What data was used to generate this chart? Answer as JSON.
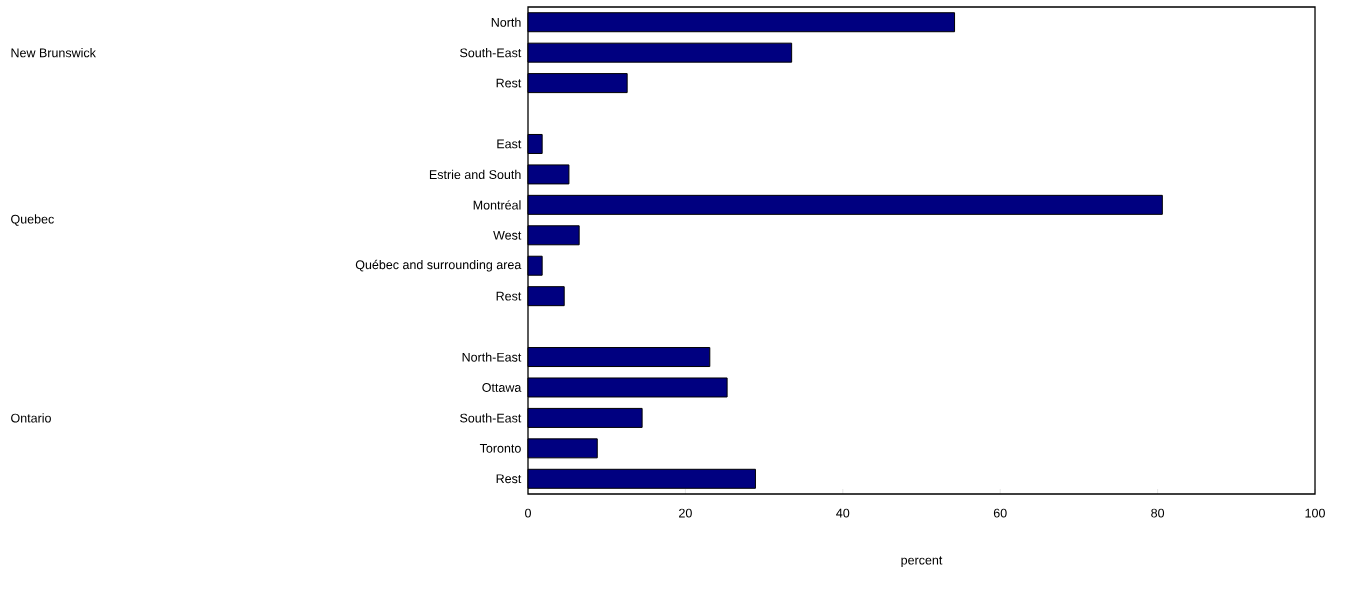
{
  "chart_data": {
    "type": "bar",
    "orientation": "horizontal",
    "xlabel": "percent",
    "categories": [
      "North",
      "South-East",
      "Rest",
      null,
      "East",
      "Estrie and South",
      "Montréal",
      "West",
      "Québec and surrounding area",
      "Rest",
      null,
      "North-East",
      "Ottawa",
      "South-East",
      "Toronto",
      "Rest"
    ],
    "values": [
      54.2,
      33.5,
      12.6,
      null,
      1.8,
      5.2,
      80.6,
      6.5,
      1.8,
      4.6,
      null,
      23.1,
      25.3,
      14.5,
      8.8,
      28.9
    ],
    "color": "#000080",
    "xlim": [
      0,
      100
    ],
    "xticks": [
      0,
      20,
      40,
      60,
      80,
      100
    ],
    "annotations": [
      "New Brunswick",
      "Quebec",
      "Ontario"
    ]
  }
}
